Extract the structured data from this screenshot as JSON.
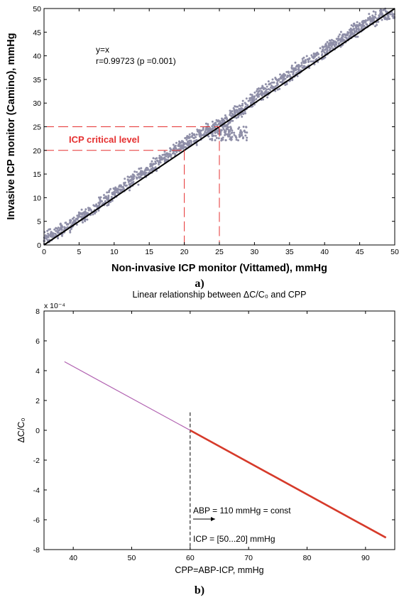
{
  "colors": {
    "scatter": "#8f8fa8",
    "fit": "#000000",
    "critical": "#e53030",
    "lineLow": "#b060b0",
    "lineHigh": "#d63a2a"
  },
  "chart_data": [
    {
      "type": "scatter",
      "panel_label": "a)",
      "title": "",
      "xlabel": "Non-invasive ICP monitor (Vittamed), mmHg",
      "ylabel": "Invasive ICP monitor (Camino), mmHg",
      "xlim": [
        0,
        50
      ],
      "ylim": [
        0,
        50
      ],
      "xticks": [
        0,
        5,
        10,
        15,
        20,
        25,
        30,
        35,
        40,
        45,
        50
      ],
      "yticks": [
        0,
        5,
        10,
        15,
        20,
        25,
        30,
        35,
        40,
        45,
        50
      ],
      "grid": false,
      "annotations": [
        "y=x",
        "r=0.99723 (p =0.001)",
        "ICP critical level"
      ],
      "identity_line": [
        [
          0,
          0
        ],
        [
          50,
          50
        ]
      ],
      "critical_levels": [
        20,
        25
      ],
      "scatter_bands": [
        {
          "x": [
            0,
            1,
            3,
            5,
            8,
            10,
            12,
            14,
            16,
            18,
            20,
            22,
            24,
            26,
            28,
            30,
            32,
            34,
            36,
            38,
            40,
            42,
            44,
            46,
            48,
            50
          ],
          "y": [
            1.5,
            2,
            3.5,
            5.5,
            8.5,
            11,
            13,
            15,
            17,
            19.5,
            21.5,
            23,
            25,
            26.5,
            28.5,
            31,
            33,
            35,
            37,
            39,
            41,
            43,
            45,
            47,
            48.5,
            49
          ]
        }
      ]
    },
    {
      "type": "line",
      "panel_label": "b)",
      "title": "Linear relationship between ΔC/C₀ and CPP",
      "xlabel": "CPP=ABP-ICP, mmHg",
      "ylabel": "ΔC/C₀",
      "y_multiplier": "x 10⁻⁴",
      "xlim": [
        35,
        95
      ],
      "ylim": [
        -8,
        8
      ],
      "xticks": [
        40,
        50,
        60,
        70,
        80,
        90
      ],
      "yticks": [
        -8,
        -6,
        -4,
        -2,
        0,
        2,
        4,
        6,
        8
      ],
      "grid": false,
      "series": [
        {
          "x": [
            38.5,
            60
          ],
          "y": [
            4.6,
            0
          ]
        },
        {
          "x": [
            60,
            93.5
          ],
          "y": [
            0,
            -7.2
          ]
        }
      ],
      "vline_x": 60,
      "annotations": [
        "ABP = 110 mmHg = const",
        "ICP = [50...20] mmHg"
      ]
    }
  ]
}
